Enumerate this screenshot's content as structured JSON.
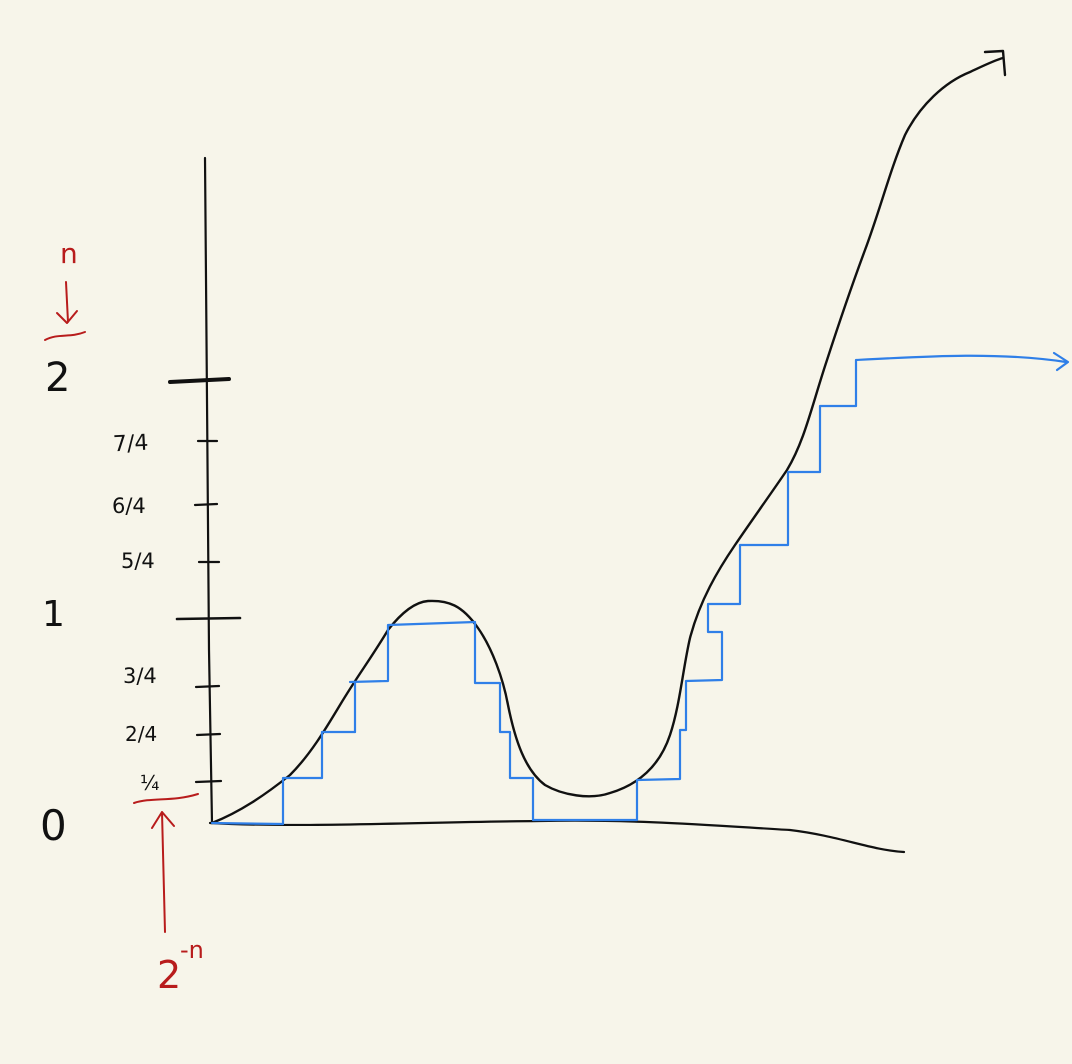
{
  "labels": {
    "tick_two": "2",
    "tick_seven_quarters": "7/4",
    "tick_six_quarters": "6/4",
    "tick_five_quarters": "5/4",
    "tick_one": "1",
    "tick_three_quarters": "3/4",
    "tick_two_quarters": "2/4",
    "tick_one_quarter": "¼",
    "tick_zero": "0",
    "annotation_n": "n",
    "annotation_step_base": "2",
    "annotation_step_exponent": "-n"
  },
  "colors": {
    "curve": "#111111",
    "staircase": "#2f7fe8",
    "annotation": "#b81c1c",
    "background": "#f7f5ea"
  }
}
